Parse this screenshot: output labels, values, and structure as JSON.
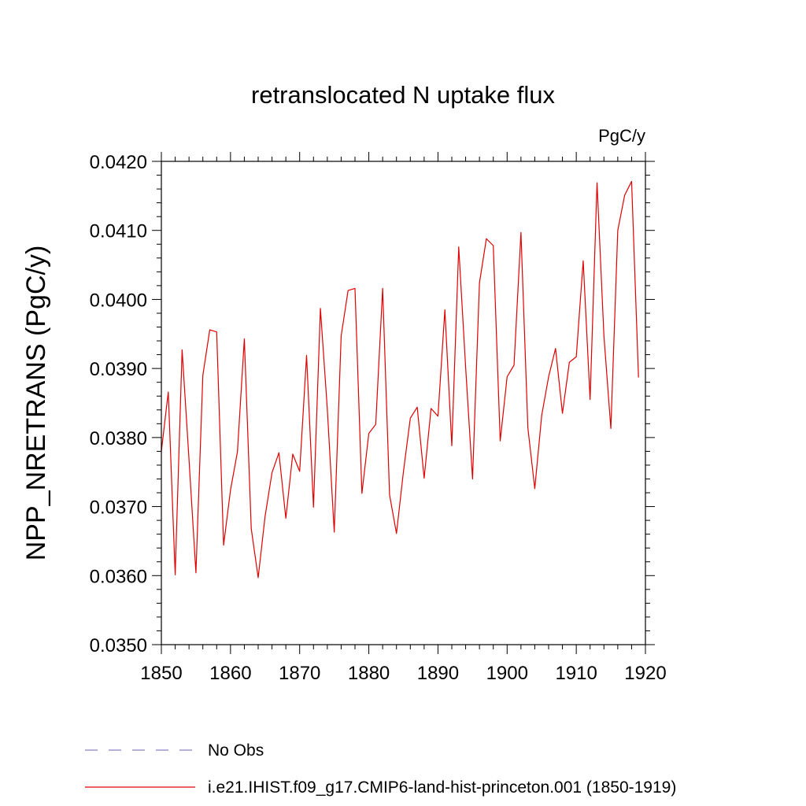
{
  "chart_data": {
    "type": "line",
    "title": "retranslocated N uptake flux",
    "units_label": "PgC/y",
    "xlabel": "",
    "ylabel": "NPP_NRETRANS  (PgC/y)",
    "xlim": [
      1850,
      1920
    ],
    "ylim": [
      0.035,
      0.042
    ],
    "x_ticks": [
      "1850",
      "1860",
      "1870",
      "1880",
      "1890",
      "1900",
      "1910",
      "1920"
    ],
    "x_tick_values": [
      1850,
      1860,
      1870,
      1880,
      1890,
      1900,
      1910,
      1920
    ],
    "y_ticks": [
      "0.0350",
      "0.0360",
      "0.0370",
      "0.0380",
      "0.0390",
      "0.0400",
      "0.0410",
      "0.0420"
    ],
    "y_tick_values": [
      0.035,
      0.036,
      0.037,
      0.038,
      0.039,
      0.04,
      0.041,
      0.042
    ],
    "grid": false,
    "legend_position": "bottom",
    "series": [
      {
        "name": "i.e21.IHIST.f09_g17.CMIP6-land-hist-princeton.001 (1850-1919)",
        "color": "#e00000",
        "style": "solid",
        "x": [
          1850,
          1851,
          1852,
          1853,
          1854,
          1855,
          1856,
          1857,
          1858,
          1859,
          1860,
          1861,
          1862,
          1863,
          1864,
          1865,
          1866,
          1867,
          1868,
          1869,
          1870,
          1871,
          1872,
          1873,
          1874,
          1875,
          1876,
          1877,
          1878,
          1879,
          1880,
          1881,
          1882,
          1883,
          1884,
          1885,
          1886,
          1887,
          1888,
          1889,
          1890,
          1891,
          1892,
          1893,
          1894,
          1895,
          1896,
          1897,
          1898,
          1899,
          1900,
          1901,
          1902,
          1903,
          1904,
          1905,
          1906,
          1907,
          1908,
          1909,
          1910,
          1911,
          1912,
          1913,
          1914,
          1915,
          1916,
          1917,
          1918,
          1919
        ],
        "values": [
          0.0378,
          0.03866,
          0.03601,
          0.03927,
          0.03768,
          0.03604,
          0.0389,
          0.03956,
          0.03953,
          0.03644,
          0.03724,
          0.03779,
          0.03943,
          0.03668,
          0.03597,
          0.03686,
          0.03749,
          0.03778,
          0.03683,
          0.03776,
          0.03751,
          0.03919,
          0.03699,
          0.03987,
          0.03841,
          0.03663,
          0.03947,
          0.04013,
          0.04016,
          0.03719,
          0.03806,
          0.03819,
          0.04016,
          0.03717,
          0.03661,
          0.0375,
          0.03828,
          0.03844,
          0.03741,
          0.03842,
          0.03831,
          0.03985,
          0.03788,
          0.04076,
          0.03902,
          0.0374,
          0.04024,
          0.04088,
          0.04078,
          0.03795,
          0.03888,
          0.03905,
          0.04097,
          0.03814,
          0.03726,
          0.03832,
          0.03888,
          0.03929,
          0.03835,
          0.03909,
          0.03917,
          0.04056,
          0.03855,
          0.04169,
          0.03947,
          0.03813,
          0.041,
          0.04151,
          0.04171,
          0.03887
        ]
      }
    ],
    "legend": [
      {
        "label": "No Obs",
        "color": "#8a7fc0",
        "style": "dashed"
      },
      {
        "label": "i.e21.IHIST.f09_g17.CMIP6-land-hist-princeton.001 (1850-1919)",
        "color": "#e00000",
        "style": "solid"
      }
    ]
  }
}
